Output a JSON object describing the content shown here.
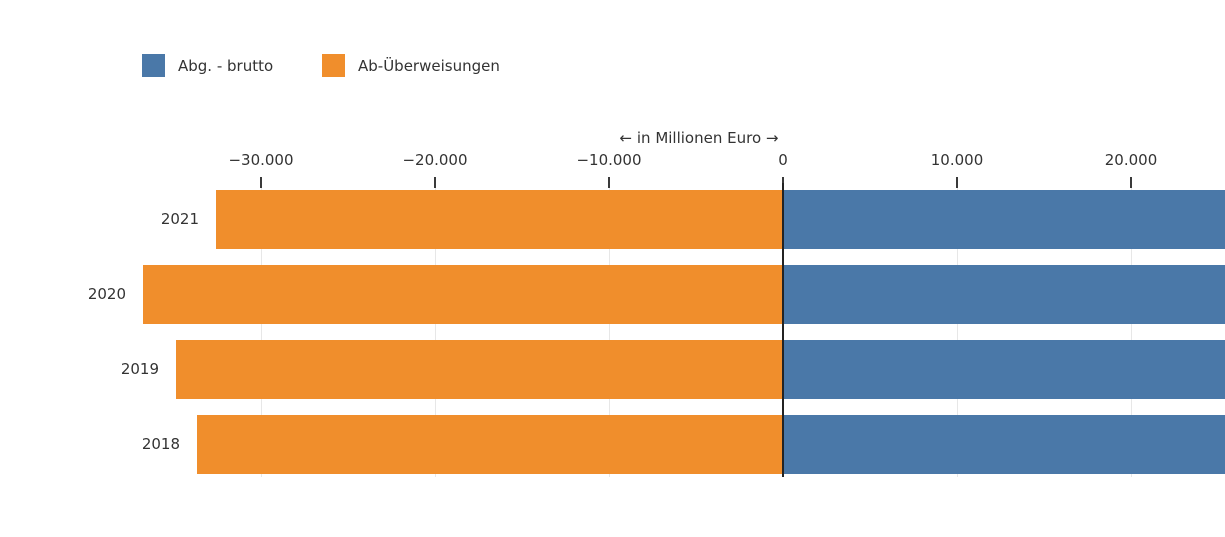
{
  "colors": {
    "series_blue": "#4a78a8",
    "series_orange": "#f08e2c",
    "text": "#333333",
    "gridline": "#e7e7e7",
    "zero_line": "#232323"
  },
  "chart_data": {
    "type": "bar",
    "orientation": "horizontal",
    "diverging": true,
    "title": "",
    "axis_title": "← in Millionen Euro →",
    "unit": "Millionen Euro",
    "legend_position": "top-left",
    "grid": true,
    "categories": [
      "2021",
      "2020",
      "2019",
      "2018"
    ],
    "x_ticks": [
      {
        "value": -30000,
        "label": "−30.000"
      },
      {
        "value": -20000,
        "label": "−20.000"
      },
      {
        "value": -10000,
        "label": "−10.000"
      },
      {
        "value": 0,
        "label": "0"
      },
      {
        "value": 10000,
        "label": "10.000"
      },
      {
        "value": 20000,
        "label": "20.000"
      }
    ],
    "x_range_visible": [
      -33500,
      25400
    ],
    "series": [
      {
        "name": "Abg. - brutto",
        "color": "#4a78a8",
        "direction": "positive",
        "values": [
          null,
          null,
          null,
          null
        ],
        "clipped_at_right_edge": true,
        "visible_min_value": 25300,
        "note": "all blue bars extend beyond the right edge of the image; exact values not readable"
      },
      {
        "name": "Ab-Überweisungen",
        "color": "#f08e2c",
        "direction": "negative",
        "values": [
          -32600,
          -36800,
          -34900,
          -33700
        ],
        "values_estimated_from_pixels": true
      }
    ]
  }
}
